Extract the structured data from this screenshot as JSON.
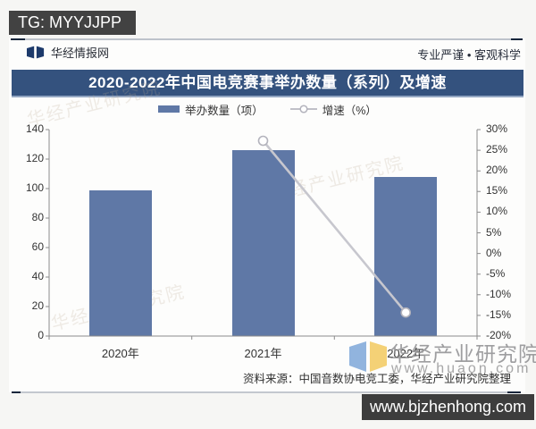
{
  "overlay": {
    "tg_label": "TG: MYYJJPP",
    "site_box": "www.bjzhenhong.com"
  },
  "header": {
    "brand": "华经情报网",
    "slogan": "专业严谨 • 客观科学"
  },
  "banner": {
    "title": "2020-2022年中国电竞赛事举办数量（系列）及增速"
  },
  "legend": [
    {
      "label": "举办数量（项）",
      "color": "#5f78a6"
    },
    {
      "label": "增速（%）",
      "color": "#c7c7ce"
    }
  ],
  "chart_data": {
    "type": "bar+line",
    "title": "2020-2022年中国电竞赛事举办数量（系列）及增速",
    "categories": [
      "2020年",
      "2021年",
      "2022年"
    ],
    "series": [
      {
        "name": "举办数量（项）",
        "type": "bar",
        "axis": "left",
        "values": [
          99,
          126,
          108
        ],
        "color": "#5f78a6"
      },
      {
        "name": "增速（%）",
        "type": "line",
        "axis": "right",
        "values": [
          null,
          27.3,
          -14.3
        ],
        "color": "#c7c7ce",
        "marker": "open-circle",
        "marker_stroke": "#b3b3bc"
      }
    ],
    "left_axis": {
      "min": 0,
      "max": 140,
      "step": 20,
      "ticks": [
        "0",
        "20",
        "40",
        "60",
        "80",
        "100",
        "120",
        "140"
      ]
    },
    "right_axis": {
      "min": -20,
      "max": 30,
      "step": 5,
      "ticks": [
        "30%",
        "25%",
        "20%",
        "15%",
        "10%",
        "5%",
        "0%",
        "-5%",
        "-10%",
        "-15%",
        "-20%"
      ]
    },
    "grid": false,
    "legend_position": "top",
    "axis_color": "#8c8c8c"
  },
  "watermark": {
    "diagonal_text": "华经产业研究院",
    "brand_text": "华经产业研究院",
    "brand_url": "www.huaon.com"
  },
  "footer": {
    "source": "资料来源：中国音数协电竞工委，华经产业研究院整理"
  }
}
